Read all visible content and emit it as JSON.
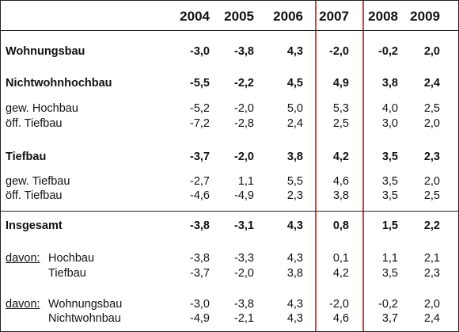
{
  "years": [
    "2004",
    "2005",
    "2006",
    "2007",
    "2008",
    "2009"
  ],
  "davon_label": "davon:",
  "rows": [
    {
      "label": "Wohnungsbau",
      "values": [
        "-3,0",
        "-3,8",
        "4,3",
        "-2,0",
        "-0,2",
        "2,0"
      ]
    },
    {
      "label": "Nichtwohnhochbau",
      "values": [
        "-5,5",
        "-2,2",
        "4,5",
        "4,9",
        "3,8",
        "2,4"
      ]
    },
    {
      "label": "gew. Hochbau",
      "values": [
        "-5,2",
        "-2,0",
        "5,0",
        "5,3",
        "4,0",
        "2,5"
      ]
    },
    {
      "label": "öff. Tiefbau",
      "values": [
        "-7,2",
        "-2,8",
        "2,4",
        "2,5",
        "3,0",
        "2,0"
      ]
    },
    {
      "label": "Tiefbau",
      "values": [
        "-3,7",
        "-2,0",
        "3,8",
        "4,2",
        "3,5",
        "2,3"
      ]
    },
    {
      "label": "gew. Tiefbau",
      "values": [
        "-2,7",
        "1,1",
        "5,5",
        "4,6",
        "3,5",
        "2,0"
      ]
    },
    {
      "label": "öff. Tiefbau",
      "values": [
        "-4,6",
        "-4,9",
        "2,3",
        "3,8",
        "3,5",
        "2,5"
      ]
    },
    {
      "label": "Insgesamt",
      "values": [
        "-3,8",
        "-3,1",
        "4,3",
        "0,8",
        "1,5",
        "2,2"
      ]
    },
    {
      "label": "Hochbau",
      "values": [
        "-3,8",
        "-3,3",
        "4,3",
        "0,1",
        "1,1",
        "2,1"
      ]
    },
    {
      "label": "Tiefbau",
      "values": [
        "-3,7",
        "-2,0",
        "3,8",
        "4,2",
        "3,5",
        "2,3"
      ]
    },
    {
      "label": "Wohnungsbau",
      "values": [
        "-3,0",
        "-3,8",
        "4,3",
        "-2,0",
        "-0,2",
        "2,0"
      ]
    },
    {
      "label": "Nichtwohnbau",
      "values": [
        "-4,9",
        "-2,1",
        "4,3",
        "4,6",
        "3,7",
        "2,4"
      ]
    }
  ]
}
